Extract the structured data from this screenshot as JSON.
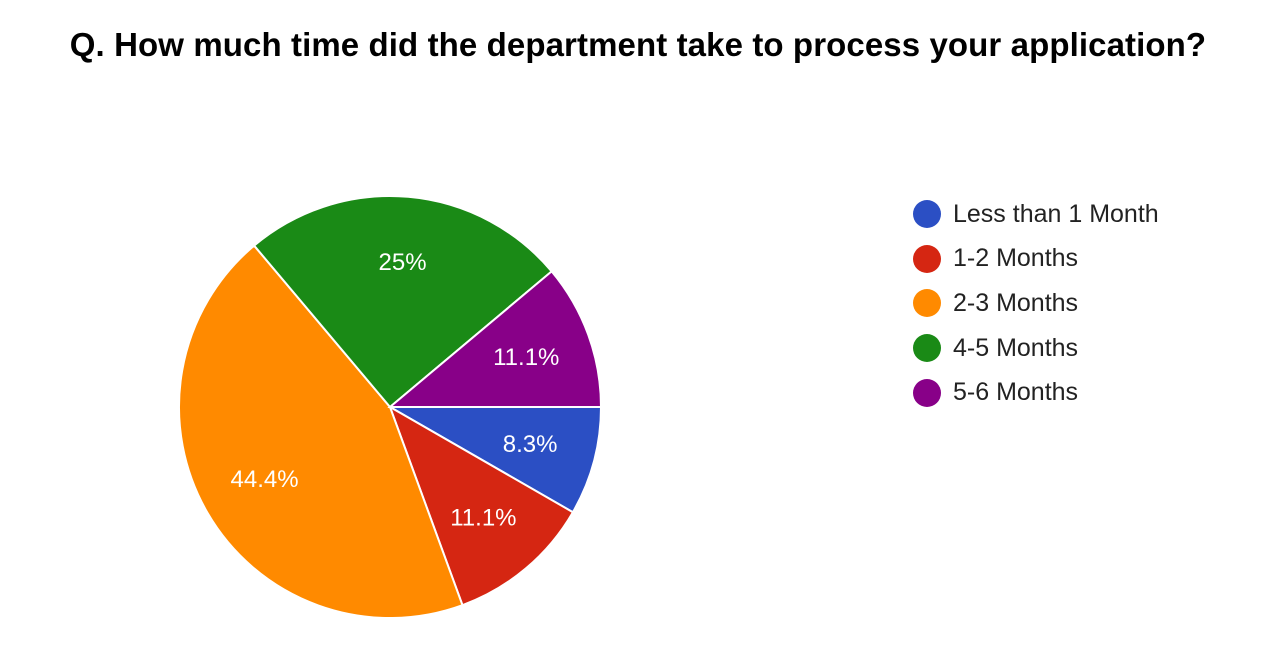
{
  "chart_data": {
    "type": "pie",
    "title": "Q. How much time did the department take to process your application?",
    "legend_position": "right",
    "slices": [
      {
        "name": "Less than 1 Month",
        "value": 8.3,
        "label": "8.3%",
        "color": "#2b4fc4"
      },
      {
        "name": "1-2 Months",
        "value": 11.1,
        "label": "11.1%",
        "color": "#d52612"
      },
      {
        "name": "2-3 Months",
        "value": 44.4,
        "label": "44.4%",
        "color": "#ff8a00"
      },
      {
        "name": "4-5 Months",
        "value": 25,
        "label": "25%",
        "color": "#1a8a16"
      },
      {
        "name": "5-6 Months",
        "value": 11.1,
        "label": "11.1%",
        "color": "#880088"
      }
    ]
  }
}
